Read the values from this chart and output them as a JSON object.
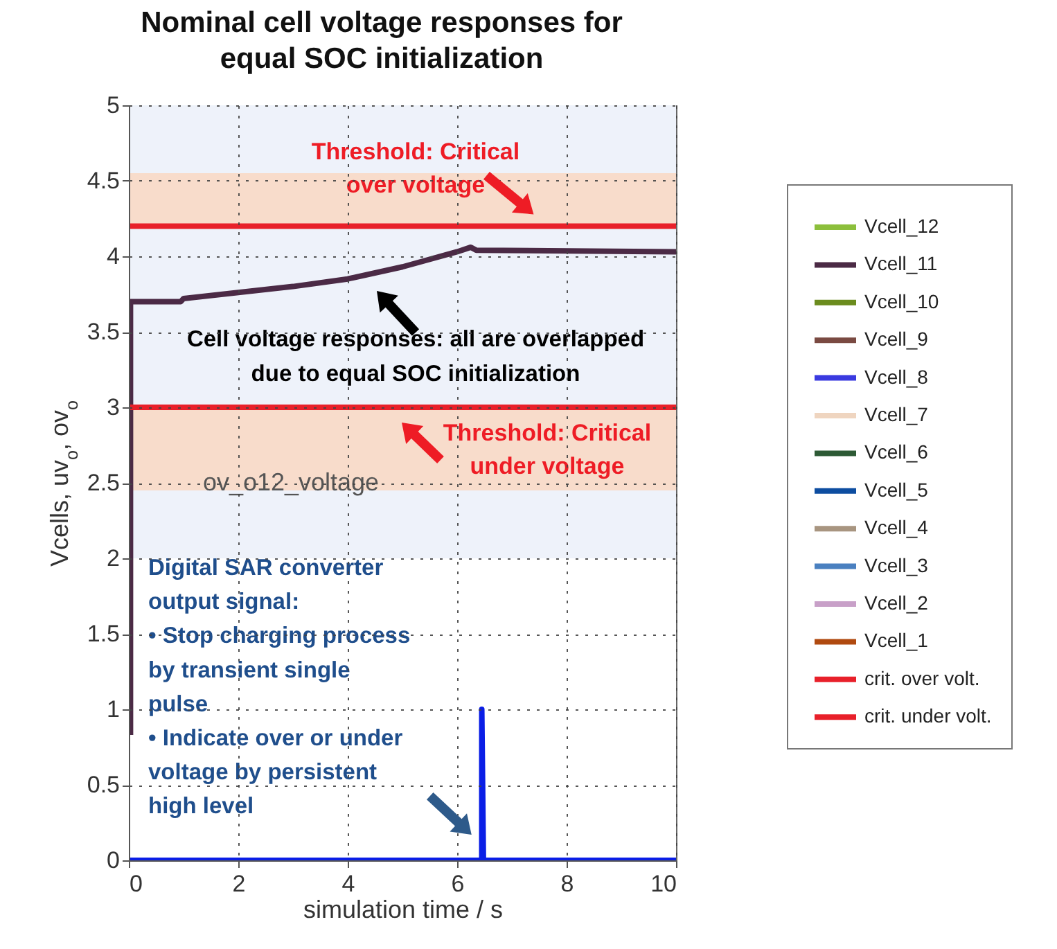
{
  "chart_data": {
    "type": "line",
    "title": "Nominal cell voltage responses for\nequal SOC initialization",
    "xlabel": "simulation time / s",
    "ylabel": "Vcells, uv$_{o}$, ov$_{o}$",
    "xlim": [
      0,
      10
    ],
    "xticks": [
      0,
      2,
      4,
      6,
      8,
      10
    ],
    "ylim": [
      0,
      5
    ],
    "yticks": [
      {
        "value": 0,
        "label": "0"
      },
      0.5,
      {
        "value": 1,
        "label": "1"
      },
      1.5,
      {
        "value": 2,
        "label": "2"
      },
      2.5,
      {
        "value": 3,
        "label": "3"
      },
      3.5,
      {
        "value": 4,
        "label": "4"
      },
      4.5,
      {
        "value": 5,
        "label": "5"
      }
    ],
    "grid": true,
    "legend": "right",
    "bands": [
      {
        "axis": "y",
        "from": 2,
        "to": 5,
        "color": "#eef2fa"
      },
      {
        "axis": "y",
        "from": 4.2,
        "to": 4.55,
        "color": "#f8dccb"
      },
      {
        "axis": "y",
        "from": 2.45,
        "to": 3,
        "color": "#f8dccb"
      }
    ],
    "series": [
      {
        "name": "Vcell_12",
        "color": "#8cbf3c",
        "values": [
          null,
          null,
          null,
          null,
          null,
          null,
          null,
          null,
          null,
          null,
          null,
          null
        ]
      },
      {
        "name": "Vcell_11",
        "color": "#4b2a45",
        "x": [
          0.03,
          0.03,
          0.95,
          1,
          2,
          3,
          4,
          5,
          6,
          6.25,
          6.35,
          10
        ],
        "values": [
          0.83,
          3.7,
          3.7,
          3.72,
          3.76,
          3.8,
          3.85,
          3.93,
          4.03,
          4.06,
          4.04,
          4.03
        ]
      },
      {
        "name": "Vcell_10",
        "color": "#6b8c1e",
        "values": [
          null,
          null,
          null,
          null,
          null,
          null,
          null,
          null,
          null,
          null,
          null,
          null
        ]
      },
      {
        "name": "Vcell_9",
        "color": "#7a4a42",
        "values": [
          null,
          null,
          null,
          null,
          null,
          null,
          null,
          null,
          null,
          null,
          null,
          null
        ]
      },
      {
        "name": "Vcell_8",
        "color": "#3a3ae0",
        "values": [
          null,
          null,
          null,
          null,
          null,
          null,
          null,
          null,
          null,
          null,
          null,
          null
        ]
      },
      {
        "name": "Vcell_7",
        "color": "#efd5c0",
        "values": [
          null,
          null,
          null,
          null,
          null,
          null,
          null,
          null,
          null,
          null,
          null,
          null
        ]
      },
      {
        "name": "Vcell_6",
        "color": "#2d5a35",
        "values": [
          null,
          null,
          null,
          null,
          null,
          null,
          null,
          null,
          null,
          null,
          null,
          null
        ]
      },
      {
        "name": "Vcell_5",
        "color": "#0d4da0",
        "values": [
          null,
          null,
          null,
          null,
          null,
          null,
          null,
          null,
          null,
          null,
          null,
          null
        ]
      },
      {
        "name": "Vcell_4",
        "color": "#a89580",
        "values": [
          null,
          null,
          null,
          null,
          null,
          null,
          null,
          null,
          null,
          null,
          null,
          null
        ]
      },
      {
        "name": "Vcell_3",
        "color": "#4a80c0",
        "values": [
          null,
          null,
          null,
          null,
          null,
          null,
          null,
          null,
          null,
          null,
          null,
          null
        ]
      },
      {
        "name": "Vcell_2",
        "color": "#c8a0c8",
        "values": [
          null,
          null,
          null,
          null,
          null,
          null,
          null,
          null,
          null,
          null,
          null,
          null
        ]
      },
      {
        "name": "Vcell_1",
        "color": "#b04a10",
        "values": [
          null,
          null,
          null,
          null,
          null,
          null,
          null,
          null,
          null,
          null,
          null,
          null
        ]
      },
      {
        "name": "crit. over volt.",
        "color": "#e8202a",
        "x": [
          0,
          10
        ],
        "values": [
          4.2,
          4.2
        ]
      },
      {
        "name": "crit. under volt.",
        "color": "#e8202a",
        "x": [
          0,
          10
        ],
        "values": [
          3,
          3
        ]
      },
      {
        "color": "#0a1ee6",
        "x": [
          0,
          6.45,
          6.45,
          6.48,
          10
        ],
        "values": [
          0,
          0,
          1,
          0,
          0
        ]
      }
    ],
    "annotations": [
      "Threshold: Critical\nover voltage",
      "Cell voltage responses: all are overlapped\ndue to equal SOC initialization",
      "Threshold: Critical\nunder voltage",
      "ov_o12_voltage",
      "Digital SAR converter\noutput signal:\n•  Stop charging process\n    by transient single\n    pulse\n•  Indicate over or under\n    voltage by persistent\n    high level"
    ]
  }
}
